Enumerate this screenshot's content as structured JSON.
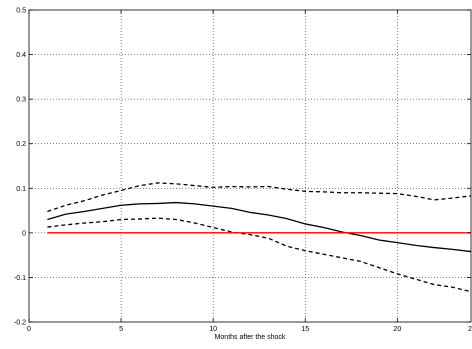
{
  "chart_data": {
    "type": "line",
    "title": "",
    "xlabel": "Months after the shock",
    "ylabel": "",
    "xlim": [
      0,
      24
    ],
    "ylim": [
      -0.2,
      0.5
    ],
    "xticks": [
      0,
      5,
      10,
      15,
      20
    ],
    "yticks": [
      -0.2,
      -0.1,
      0,
      0.1,
      0.2,
      0.3,
      0.4,
      0.5
    ],
    "xtick_labels": [
      "0",
      "5",
      "10",
      "15",
      "20",
      ""
    ],
    "ytick_labels": [
      "-0.2",
      "-0.1",
      "0",
      "0.1",
      "0.2",
      "0.3",
      "0.4",
      "0.5"
    ],
    "grid": true,
    "series": [
      {
        "style": "solid",
        "color": "#000000",
        "x": [
          1,
          2,
          3,
          4,
          5,
          6,
          7,
          8,
          9,
          10,
          11,
          12,
          13,
          14,
          15,
          16,
          17,
          18,
          19,
          20,
          21,
          22,
          23,
          24
        ],
        "values": [
          0.03,
          0.042,
          0.048,
          0.055,
          0.062,
          0.065,
          0.066,
          0.068,
          0.065,
          0.06,
          0.055,
          0.046,
          0.04,
          0.032,
          0.02,
          0.012,
          0.002,
          -0.006,
          -0.016,
          -0.022,
          -0.028,
          -0.033,
          -0.037,
          -0.042
        ]
      },
      {
        "style": "dashed",
        "color": "#000000",
        "x": [
          1,
          2,
          3,
          4,
          5,
          6,
          7,
          8,
          9,
          10,
          11,
          12,
          13,
          14,
          15,
          16,
          17,
          18,
          19,
          20,
          21,
          22,
          23,
          24
        ],
        "values": [
          0.048,
          0.062,
          0.072,
          0.085,
          0.095,
          0.106,
          0.112,
          0.11,
          0.106,
          0.102,
          0.104,
          0.103,
          0.104,
          0.098,
          0.093,
          0.092,
          0.09,
          0.09,
          0.089,
          0.088,
          0.082,
          0.074,
          0.078,
          0.083
        ]
      },
      {
        "style": "dashed",
        "color": "#000000",
        "x": [
          1,
          2,
          3,
          4,
          5,
          6,
          7,
          8,
          9,
          10,
          11,
          12,
          13,
          14,
          15,
          16,
          17,
          18,
          19,
          20,
          21,
          22,
          23,
          24
        ],
        "values": [
          0.013,
          0.018,
          0.022,
          0.025,
          0.03,
          0.031,
          0.033,
          0.03,
          0.022,
          0.012,
          0.002,
          -0.004,
          -0.012,
          -0.03,
          -0.04,
          -0.048,
          -0.056,
          -0.064,
          -0.078,
          -0.092,
          -0.104,
          -0.116,
          -0.122,
          -0.132
        ]
      },
      {
        "style": "solid",
        "color": "#ff0000",
        "x": [
          1,
          24
        ],
        "values": [
          0,
          0
        ]
      }
    ]
  }
}
